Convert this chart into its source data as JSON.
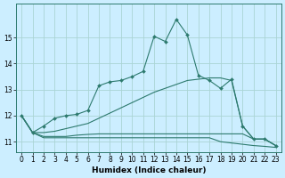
{
  "xlabel": "Humidex (Indice chaleur)",
  "bg_color": "#cceeff",
  "line_color": "#2d7a6e",
  "grid_color": "#aad4d4",
  "xlim": [
    -0.5,
    23.5
  ],
  "ylim": [
    10.6,
    16.3
  ],
  "yticks": [
    11,
    12,
    13,
    14,
    15
  ],
  "xticks": [
    0,
    1,
    2,
    3,
    4,
    5,
    6,
    7,
    8,
    9,
    10,
    11,
    12,
    13,
    14,
    15,
    16,
    17,
    18,
    19,
    20,
    21,
    22,
    23
  ],
  "lines": [
    {
      "x": [
        0,
        1,
        2,
        3,
        4,
        5,
        6,
        7,
        8,
        9,
        10,
        11,
        12,
        13,
        14,
        15,
        16,
        17,
        18,
        19,
        20,
        21,
        22,
        23
      ],
      "y": [
        12.0,
        11.35,
        11.6,
        11.9,
        12.0,
        12.05,
        12.2,
        13.15,
        13.3,
        13.35,
        13.5,
        13.7,
        15.05,
        14.85,
        15.7,
        15.1,
        13.55,
        13.35,
        13.05,
        13.4,
        11.6,
        11.1,
        11.1,
        10.85
      ],
      "marker": true
    },
    {
      "x": [
        0,
        1,
        2,
        3,
        4,
        5,
        6,
        7,
        8,
        9,
        10,
        11,
        12,
        13,
        14,
        15,
        16,
        17,
        18,
        19,
        20,
        21,
        22,
        23
      ],
      "y": [
        12.0,
        11.35,
        11.35,
        11.4,
        11.5,
        11.6,
        11.7,
        11.9,
        12.1,
        12.3,
        12.5,
        12.7,
        12.9,
        13.05,
        13.2,
        13.35,
        13.4,
        13.45,
        13.45,
        13.35,
        11.6,
        11.1,
        11.1,
        10.85
      ],
      "marker": false
    },
    {
      "x": [
        0,
        1,
        2,
        3,
        4,
        5,
        6,
        7,
        8,
        9,
        10,
        11,
        12,
        13,
        14,
        15,
        16,
        17,
        18,
        19,
        20,
        21,
        22,
        23
      ],
      "y": [
        12.0,
        11.35,
        11.2,
        11.2,
        11.2,
        11.25,
        11.28,
        11.3,
        11.3,
        11.3,
        11.3,
        11.3,
        11.3,
        11.3,
        11.3,
        11.3,
        11.3,
        11.3,
        11.3,
        11.3,
        11.3,
        11.1,
        11.1,
        10.85
      ],
      "marker": false
    },
    {
      "x": [
        0,
        1,
        2,
        3,
        4,
        5,
        6,
        7,
        8,
        9,
        10,
        11,
        12,
        13,
        14,
        15,
        16,
        17,
        18,
        19,
        20,
        21,
        22,
        23
      ],
      "y": [
        12.0,
        11.35,
        11.15,
        11.15,
        11.15,
        11.15,
        11.15,
        11.15,
        11.15,
        11.15,
        11.15,
        11.15,
        11.15,
        11.15,
        11.15,
        11.15,
        11.15,
        11.15,
        11.0,
        10.95,
        10.9,
        10.85,
        10.82,
        10.78
      ],
      "marker": false
    }
  ]
}
